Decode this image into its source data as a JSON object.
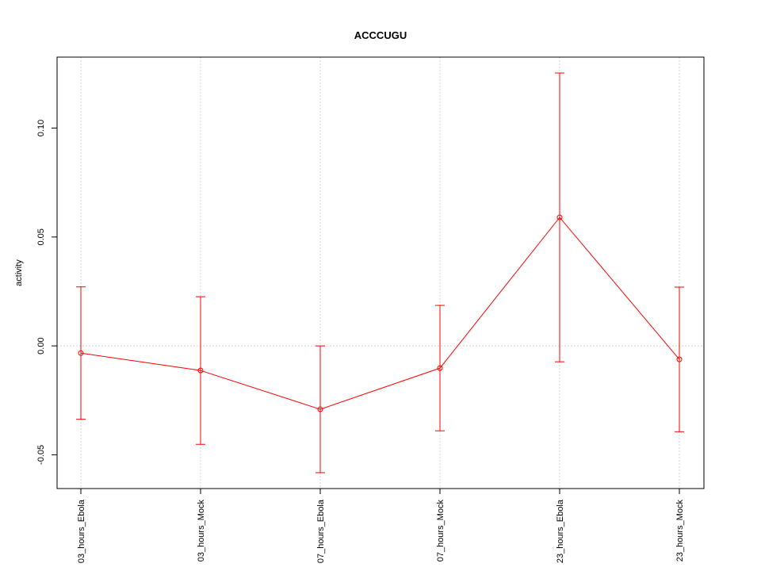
{
  "chart_data": {
    "type": "line",
    "title": "ACCCUGU",
    "y_label": "activity",
    "categories": [
      "03_hours_Ebola",
      "03_hours_Mock",
      "07_hours_Ebola",
      "07_hours_Mock",
      "23_hours_Ebola",
      "23_hours_Mock"
    ],
    "series": [
      {
        "name": "activity",
        "color": "#ff0000",
        "values": [
          -0.0033,
          -0.0113,
          -0.0291,
          -0.0102,
          0.059,
          -0.0062
        ],
        "errors": [
          0.0304,
          0.0339,
          0.0291,
          0.0288,
          0.0663,
          0.0332
        ]
      }
    ],
    "ylim": [
      -0.0655,
      0.1326
    ],
    "yticks": [
      {
        "value": -0.05,
        "label": "-0.05"
      },
      {
        "value": 0,
        "label": "0.00"
      },
      {
        "value": 0.05,
        "label": "0.05"
      },
      {
        "value": 0.1,
        "label": "0.10"
      }
    ],
    "reference_line": 0,
    "grid": true
  }
}
